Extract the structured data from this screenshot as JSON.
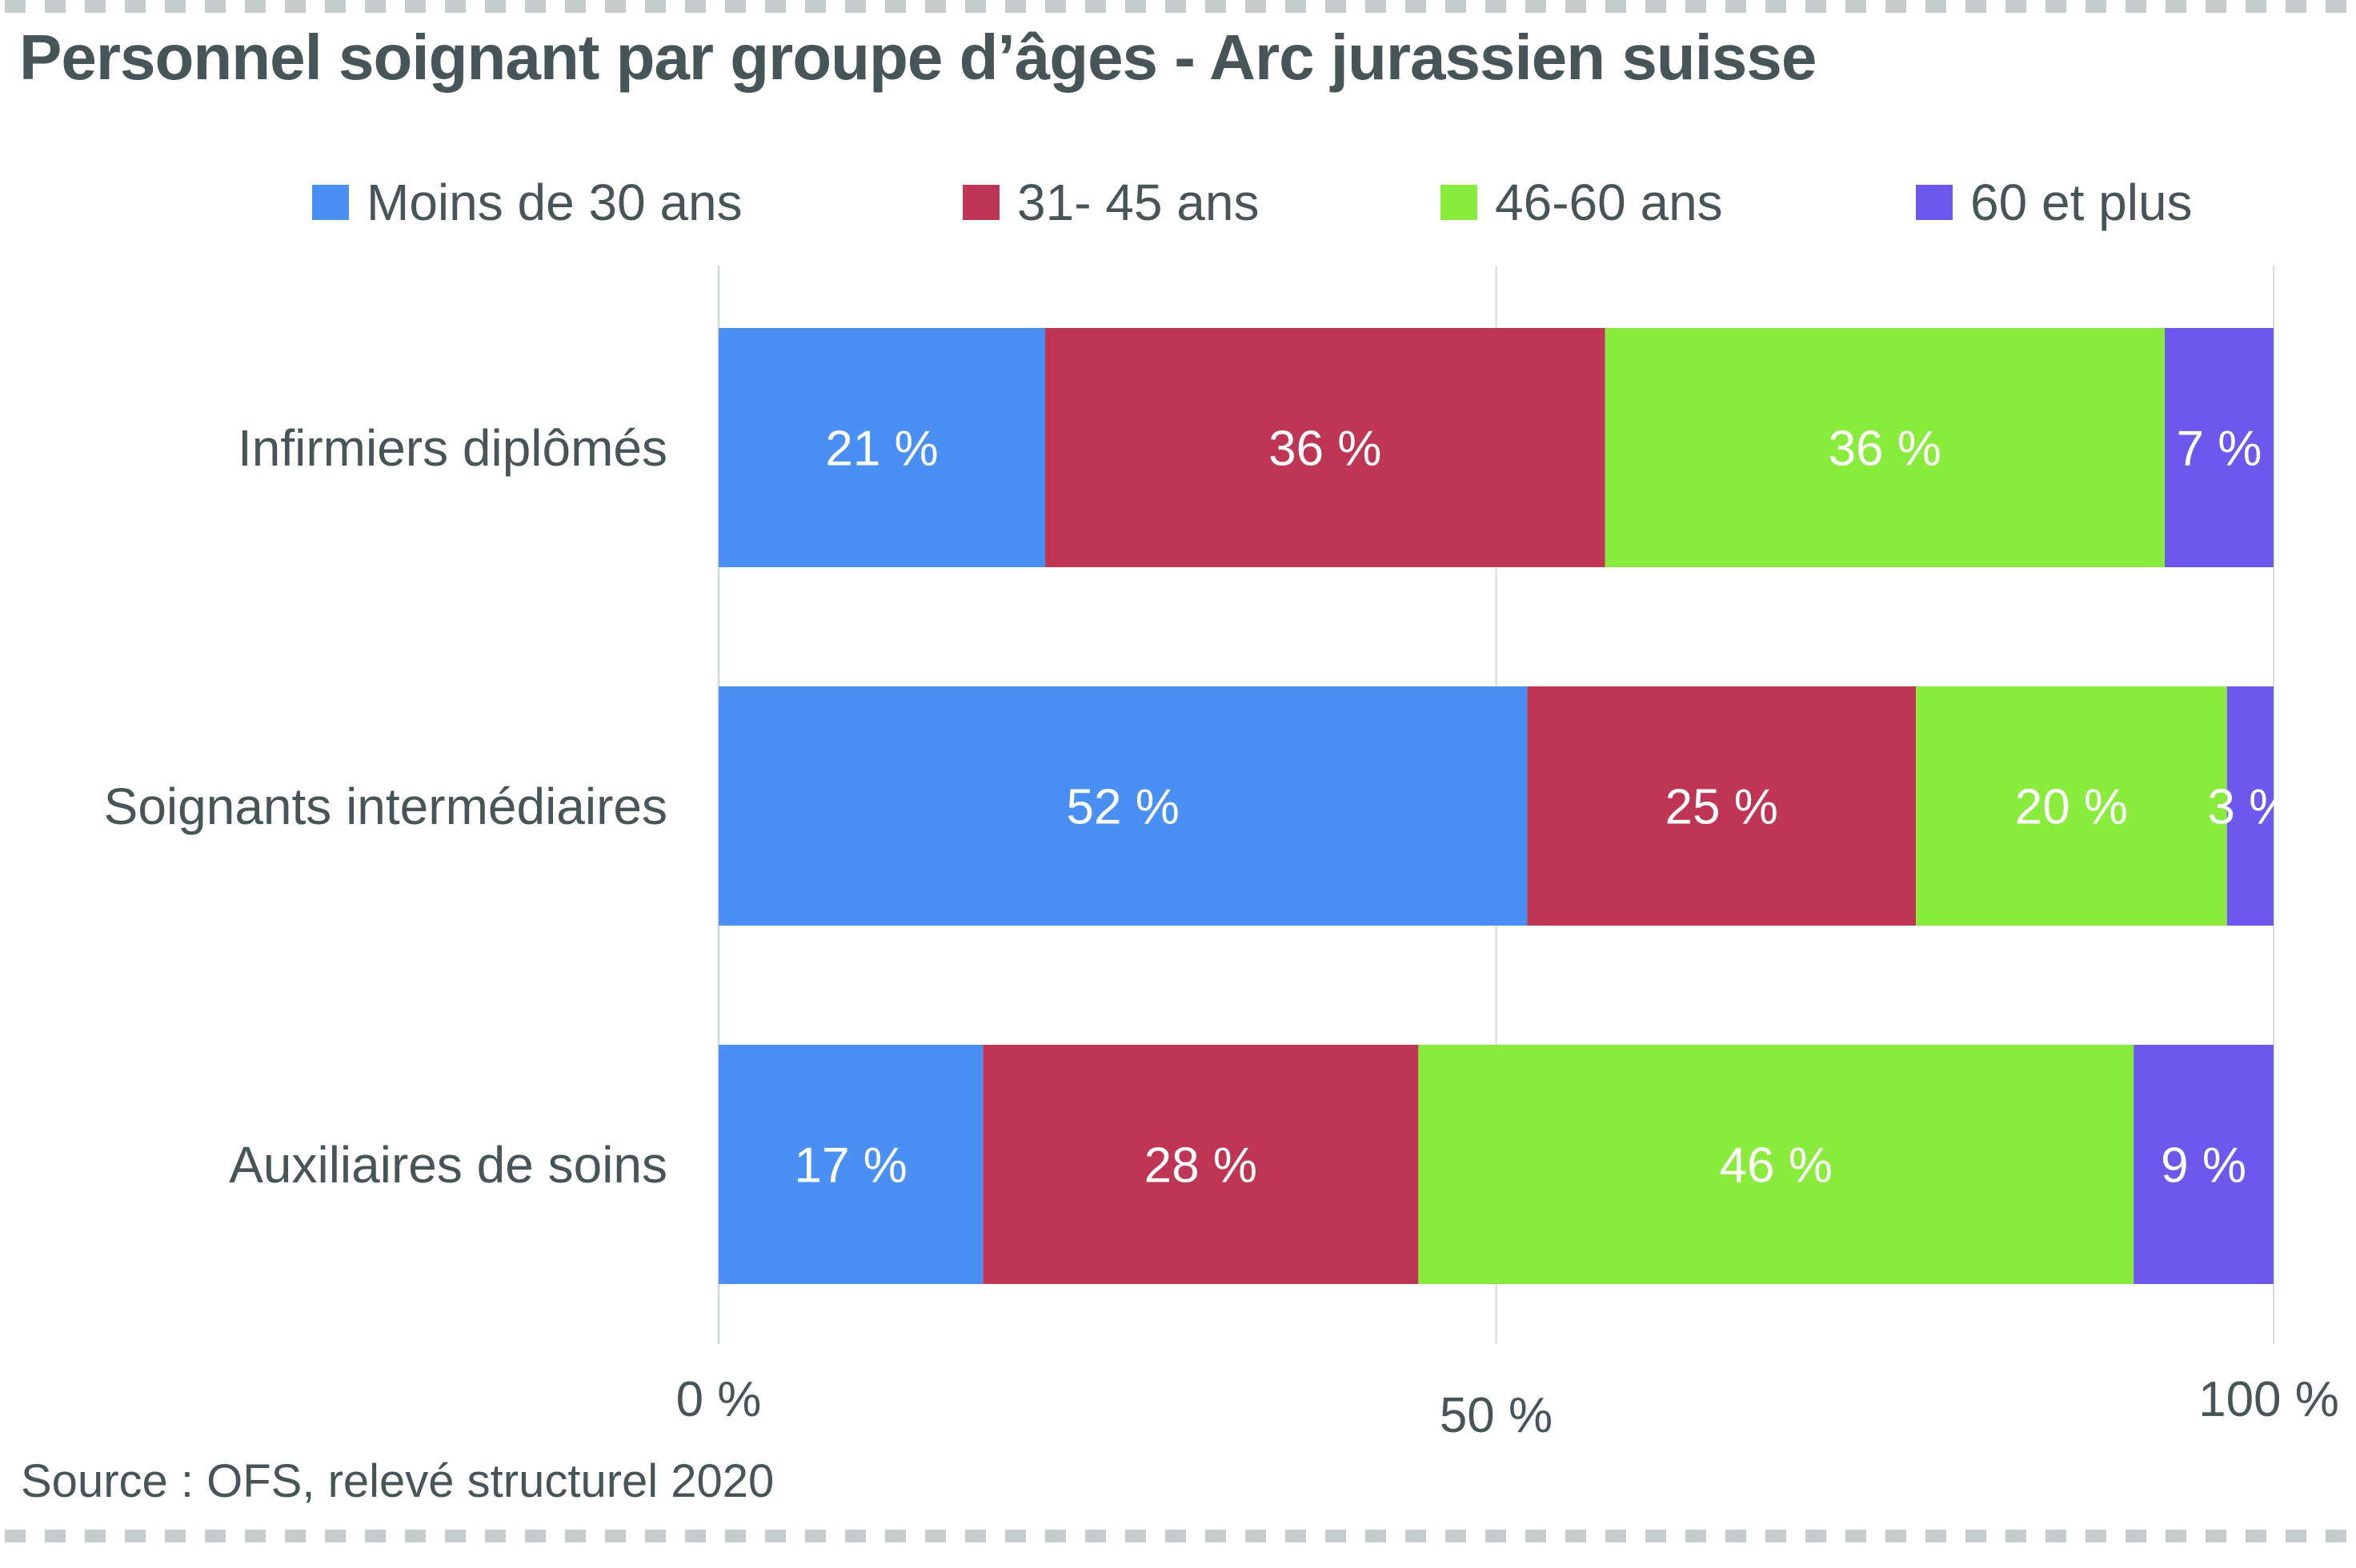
{
  "title": "Personnel soignant par groupe d’âges - Arc jurassien suisse",
  "source": "Source : OFS, relevé structurel 2020",
  "chart_data": {
    "type": "bar",
    "orientation": "horizontal",
    "stacked": true,
    "normalized": true,
    "title": "Personnel soignant par groupe d’âges - Arc jurassien suisse",
    "xlabel": "",
    "ylabel": "",
    "xlim": [
      0,
      100
    ],
    "x_ticks": [
      0,
      50,
      100
    ],
    "x_tick_labels": [
      "0 %",
      "50 %",
      "100 %"
    ],
    "grid": true,
    "legend_position": "top",
    "categories": [
      "Infirmiers diplômés",
      "Soignants intermédiaires",
      "Auxiliaires de soins"
    ],
    "series": [
      {
        "name": "Moins de 30 ans",
        "color": "#4a90f4",
        "values": [
          21,
          52,
          17
        ],
        "labels": [
          "21 %",
          "52 %",
          "17 %"
        ]
      },
      {
        "name": "31- 45 ans",
        "color": "#bf3655",
        "values": [
          36,
          25,
          28
        ],
        "labels": [
          "36 %",
          "25 %",
          "28 %"
        ]
      },
      {
        "name": "46-60 ans",
        "color": "#89eb3b",
        "values": [
          36,
          20,
          46
        ],
        "labels": [
          "36 %",
          "20 %",
          "46 %"
        ]
      },
      {
        "name": "60 et plus",
        "color": "#6c58ec",
        "values": [
          7,
          3,
          9
        ],
        "labels": [
          "7 %",
          "3 %",
          "9 %"
        ]
      }
    ],
    "source": "Source : OFS, relevé structurel 2020"
  },
  "colors": {
    "text": "#475458",
    "gridline": "#d4dcdb",
    "dash_border": "#c5cccb",
    "segment_label": "#ffffff"
  }
}
